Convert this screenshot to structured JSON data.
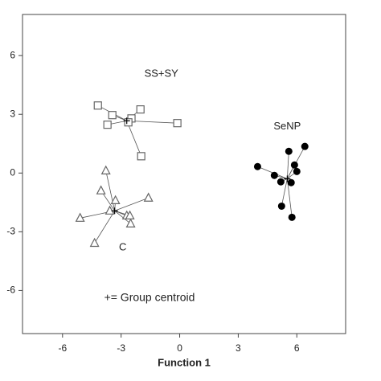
{
  "chart_data": {
    "type": "scatter",
    "xlabel": "Function 1",
    "xlim": [
      -8.05,
      8.5
    ],
    "ylim": [
      -8.2,
      8.1
    ],
    "xticks": [
      -6,
      -3,
      0,
      3,
      6
    ],
    "yticks": [
      -6,
      -3,
      0,
      3,
      6
    ],
    "note": "+= Group centroid",
    "series": [
      {
        "name": "SS+SY",
        "color": "#666666",
        "marker": "square",
        "x": [
          -4.19,
          -3.45,
          -3.7,
          -2.47,
          -2.63,
          -2.01,
          -0.12,
          -1.97
        ],
        "values": [
          3.45,
          2.96,
          2.47,
          2.79,
          2.59,
          3.25,
          2.55,
          0.86
        ],
        "centroid": [
          -2.71,
          2.67
        ]
      },
      {
        "name": "SeNP",
        "color": "#000000",
        "marker": "circle",
        "x": [
          3.99,
          5.59,
          6.41,
          4.85,
          5.88,
          6.0,
          5.18,
          5.71,
          5.22,
          5.75
        ],
        "values": [
          0.33,
          1.11,
          1.36,
          -0.12,
          0.41,
          0.08,
          -0.45,
          -0.49,
          -1.69,
          -2.26
        ],
        "centroid": [
          5.51,
          -0.29
        ]
      },
      {
        "name": "C",
        "color": "#666666",
        "marker": "triangle",
        "x": [
          -3.78,
          -4.03,
          -3.29,
          -1.6,
          -5.1,
          -3.58,
          -2.71,
          -2.55,
          -2.51,
          -4.36
        ],
        "values": [
          0.12,
          -0.9,
          -1.4,
          -1.27,
          -2.3,
          -1.93,
          -2.18,
          -2.18,
          -2.59,
          -3.58
        ],
        "centroid": [
          -3.33,
          -1.93
        ]
      }
    ]
  }
}
